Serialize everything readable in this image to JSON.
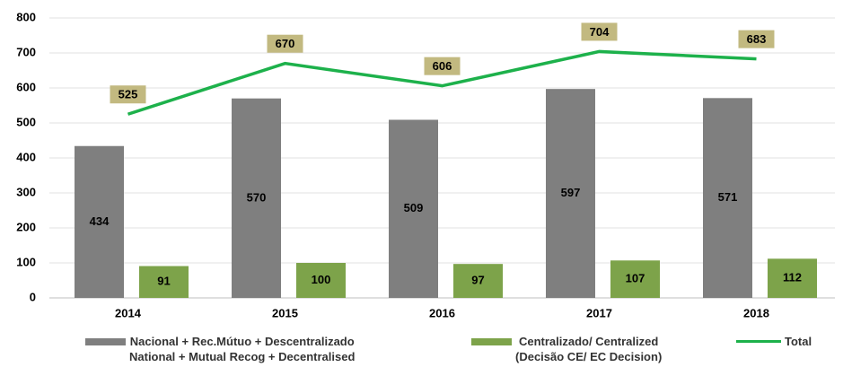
{
  "chart_data": {
    "type": "bar_line",
    "categories": [
      "2014",
      "2015",
      "2016",
      "2017",
      "2018"
    ],
    "series": [
      {
        "name": "Nacional +  Rec.Mútuo + Descentralizado\nNational + Mutual Recog + Decentralised",
        "color": "#7f7f7f",
        "type": "bar",
        "values": [
          434,
          570,
          509,
          597,
          571
        ]
      },
      {
        "name": "Centralizado/ Centralized\n(Decisão CE/ EC Decision)",
        "color": "#7da34a",
        "type": "bar",
        "values": [
          91,
          100,
          97,
          107,
          112
        ]
      },
      {
        "name": "Total",
        "color": "#1db14b",
        "type": "line",
        "values": [
          525,
          670,
          606,
          704,
          683
        ]
      }
    ],
    "ylim": [
      0,
      800
    ],
    "yticks": [
      0,
      100,
      200,
      300,
      400,
      500,
      600,
      700,
      800
    ],
    "grid": true,
    "legend": "bottom"
  }
}
